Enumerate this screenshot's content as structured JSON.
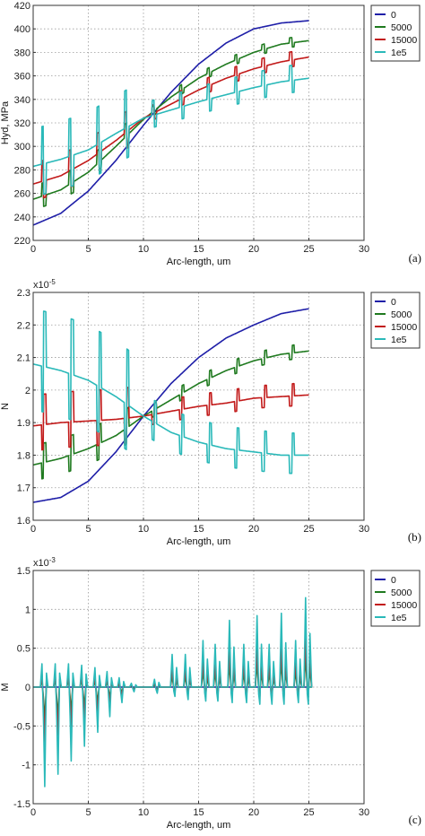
{
  "chart_data": [
    {
      "panel_label": "(a)",
      "type": "line",
      "xlabel": "Arc-length, um",
      "ylabel": "Hyd, MPa",
      "exponent_label": "",
      "xlim": [
        0,
        30
      ],
      "ylim": [
        220,
        420
      ],
      "xticks": [
        0,
        5,
        10,
        15,
        20,
        25,
        30
      ],
      "yticks": [
        220,
        240,
        260,
        280,
        300,
        320,
        340,
        360,
        380,
        400,
        420
      ],
      "ytick_labels": [
        "220",
        "240",
        "260",
        "280",
        "300",
        "320",
        "340",
        "360",
        "380",
        "400",
        "420"
      ],
      "grid": true,
      "legend_position": "top-right",
      "series": [
        {
          "name": "0",
          "color": "#1f1fa8",
          "x": [
            0,
            2.5,
            5,
            7.5,
            10,
            12.5,
            15,
            17.5,
            20,
            22.5,
            25
          ],
          "y": [
            233,
            243,
            262,
            288,
            318,
            346,
            370,
            388,
            400,
            405,
            407
          ]
        },
        {
          "name": "5000",
          "color": "#1f7a1f",
          "x": [
            0,
            2.5,
            5,
            7.5,
            10,
            12.5,
            15,
            17.5,
            20,
            22.5,
            25
          ],
          "y": [
            255,
            263,
            278,
            300,
            323,
            342,
            358,
            370,
            380,
            387,
            390
          ]
        },
        {
          "name": "15000",
          "color": "#c21a1a",
          "x": [
            0,
            2.5,
            5,
            7.5,
            10,
            12.5,
            15,
            17.5,
            20,
            22.5,
            25
          ],
          "y": [
            268,
            275,
            288,
            305,
            324,
            336,
            348,
            358,
            366,
            372,
            376
          ]
        },
        {
          "name": "1e5",
          "color": "#2ab9b9",
          "x": [
            0,
            2.5,
            5,
            7.5,
            10,
            12.5,
            15,
            17.5,
            20,
            22.5,
            25
          ],
          "y": [
            283,
            289,
            297,
            311,
            324,
            331,
            338,
            344,
            350,
            355,
            358
          ]
        }
      ],
      "spikes": {
        "series": "1e5",
        "amplitude_up": 32,
        "amplitude_down": 26,
        "spacing": 2.5
      }
    },
    {
      "panel_label": "(b)",
      "type": "line",
      "xlabel": "Arc-length, um",
      "ylabel": "N",
      "exponent_label": "x10",
      "exponent_power": "-5",
      "xlim": [
        0,
        30
      ],
      "ylim": [
        1.6,
        2.3
      ],
      "xticks": [
        0,
        5,
        10,
        15,
        20,
        25,
        30
      ],
      "yticks": [
        1.6,
        1.7,
        1.8,
        1.9,
        2.0,
        2.1,
        2.2,
        2.3
      ],
      "ytick_labels": [
        "1.6",
        "1.7",
        "1.8",
        "1.9",
        "2",
        "2.1",
        "2.2",
        "2.3"
      ],
      "grid": true,
      "legend_position": "top-right",
      "series": [
        {
          "name": "0",
          "color": "#1f1fa8",
          "x": [
            0,
            2.5,
            5,
            7.5,
            10,
            12.5,
            15,
            17.5,
            20,
            22.5,
            25
          ],
          "y": [
            1.655,
            1.67,
            1.72,
            1.81,
            1.92,
            2.02,
            2.1,
            2.16,
            2.2,
            2.235,
            2.25
          ]
        },
        {
          "name": "5000",
          "color": "#1f7a1f",
          "x": [
            0,
            2.5,
            5,
            7.5,
            10,
            12.5,
            15,
            17.5,
            20,
            22.5,
            25
          ],
          "y": [
            1.77,
            1.79,
            1.82,
            1.86,
            1.92,
            1.97,
            2.02,
            2.06,
            2.09,
            2.11,
            2.12
          ]
        },
        {
          "name": "15000",
          "color": "#c21a1a",
          "x": [
            0,
            2.5,
            5,
            7.5,
            10,
            12.5,
            15,
            17.5,
            20,
            22.5,
            25
          ],
          "y": [
            1.89,
            1.9,
            1.905,
            1.91,
            1.92,
            1.935,
            1.95,
            1.96,
            1.975,
            1.98,
            1.985
          ]
        },
        {
          "name": "1e5",
          "color": "#2ab9b9",
          "x": [
            0,
            2.5,
            5,
            7.5,
            10,
            12.5,
            15,
            17.5,
            20,
            22.5,
            25
          ],
          "y": [
            2.08,
            2.06,
            2.03,
            1.98,
            1.92,
            1.87,
            1.84,
            1.82,
            1.81,
            1.8,
            1.8
          ]
        }
      ],
      "spikes": {
        "series": "1e5",
        "amplitude_up": 0.14,
        "amplitude_down": 0.17,
        "spacing": 2.5
      }
    },
    {
      "panel_label": "(c)",
      "type": "line",
      "xlabel": "Arc-length, um",
      "ylabel": "M",
      "exponent_label": "x10",
      "exponent_power": "-3",
      "xlim": [
        0,
        30
      ],
      "ylim": [
        -1.5,
        1.5
      ],
      "xticks": [
        0,
        5,
        10,
        15,
        20,
        25,
        30
      ],
      "yticks": [
        -1.5,
        -1,
        -0.5,
        0,
        0.5,
        1,
        1.5
      ],
      "ytick_labels": [
        "-1.5",
        "-1",
        "-0.5",
        "0",
        "0.5",
        "1",
        "1.5"
      ],
      "grid": true,
      "legend_position": "top-right",
      "series": [
        {
          "name": "0",
          "color": "#1f1fa8",
          "x": [
            0,
            25
          ],
          "y": [
            0,
            0
          ]
        },
        {
          "name": "5000",
          "color": "#1f7a1f",
          "x": [
            0,
            25
          ],
          "y": [
            0,
            0
          ]
        },
        {
          "name": "15000",
          "color": "#c21a1a",
          "x": [
            0,
            25
          ],
          "y": [
            0,
            0
          ]
        },
        {
          "name": "1e5",
          "color": "#2ab9b9",
          "x": [
            0,
            25
          ],
          "y": [
            0,
            0
          ]
        }
      ],
      "spikes": {
        "series": "1e5",
        "positions": [
          1.0,
          2.2,
          3.4,
          4.6,
          5.8,
          6.9,
          8.0,
          9.1,
          11.2,
          12.8,
          14.0,
          15.6,
          16.7,
          18.0,
          19.3,
          20.5,
          21.6,
          22.7,
          24.0,
          24.9
        ],
        "peaks": [
          0.3,
          0.3,
          0.3,
          0.28,
          0.25,
          0.2,
          0.12,
          0.05,
          0.1,
          0.42,
          0.42,
          0.6,
          0.55,
          0.86,
          0.55,
          0.92,
          0.55,
          0.95,
          0.6,
          1.15
        ],
        "troughs": [
          -1.28,
          -1.12,
          -0.95,
          -0.76,
          -0.58,
          -0.38,
          -0.2,
          -0.06,
          -0.08,
          -0.12,
          -0.16,
          -0.18,
          -0.18,
          -0.2,
          -0.2,
          -0.22,
          -0.22,
          -0.22,
          -0.2,
          -0.22
        ]
      }
    }
  ]
}
